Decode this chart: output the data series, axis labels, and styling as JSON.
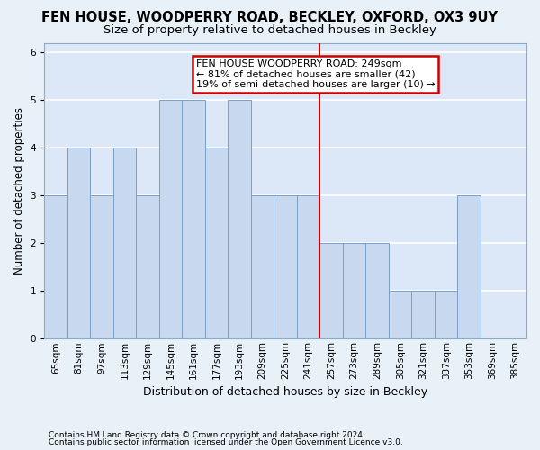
{
  "title1": "FEN HOUSE, WOODPERRY ROAD, BECKLEY, OXFORD, OX3 9UY",
  "title2": "Size of property relative to detached houses in Beckley",
  "xlabel": "Distribution of detached houses by size in Beckley",
  "ylabel": "Number of detached properties",
  "footer1": "Contains HM Land Registry data © Crown copyright and database right 2024.",
  "footer2": "Contains public sector information licensed under the Open Government Licence v3.0.",
  "categories": [
    "65sqm",
    "81sqm",
    "97sqm",
    "113sqm",
    "129sqm",
    "145sqm",
    "161sqm",
    "177sqm",
    "193sqm",
    "209sqm",
    "225sqm",
    "241sqm",
    "257sqm",
    "273sqm",
    "289sqm",
    "305sqm",
    "321sqm",
    "337sqm",
    "353sqm",
    "369sqm",
    "385sqm"
  ],
  "values": [
    3,
    4,
    3,
    4,
    3,
    5,
    5,
    4,
    5,
    3,
    3,
    3,
    2,
    2,
    2,
    1,
    1,
    1,
    3,
    0,
    0
  ],
  "bar_color": "#c8d8ee",
  "bar_edge_color": "#7aa0c8",
  "annotation_text": "FEN HOUSE WOODPERRY ROAD: 249sqm\n← 81% of detached houses are smaller (42)\n19% of semi-detached houses are larger (10) →",
  "annotation_box_color": "#ffffff",
  "annotation_box_edge": "#cc0000",
  "vline_color": "#cc0000",
  "ylim_max": 6.2,
  "background_color": "#dce8f8",
  "grid_color": "#ffffff",
  "fig_bg_color": "#e8f0f8",
  "title_fontsize": 10.5,
  "subtitle_fontsize": 9.5,
  "tick_fontsize": 7.5,
  "ylabel_fontsize": 8.5,
  "xlabel_fontsize": 9,
  "footer_fontsize": 6.5,
  "annotation_fontsize": 8
}
